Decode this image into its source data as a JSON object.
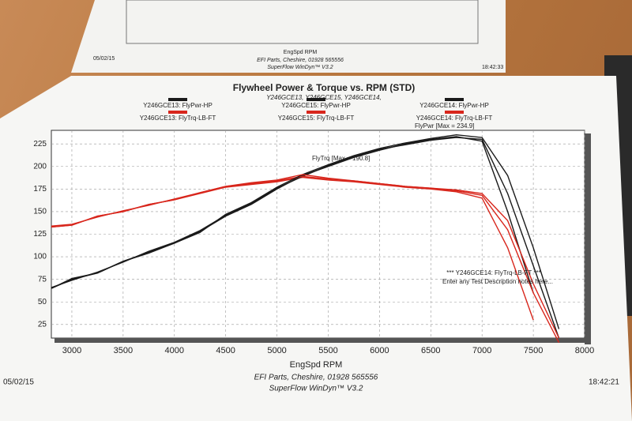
{
  "chart_data": {
    "type": "line",
    "title": "Flywheel Power & Torque vs. RPM (STD)",
    "subtitle": "Y246GCE13, Y246GCE15, Y246GCE14,",
    "x_label": "EngSpd RPM",
    "x": [
      2800,
      3000,
      3250,
      3500,
      3750,
      4000,
      4250,
      4500,
      4750,
      5000,
      5250,
      5500,
      5750,
      6000,
      6250,
      6500,
      6750,
      7000,
      7250,
      7500,
      7750
    ],
    "series": [
      {
        "name": "Y246GCE13: FlyPwr-HP",
        "color": "#1a1a1a",
        "values": [
          65,
          75,
          82,
          95,
          105,
          115,
          128,
          145,
          158,
          175,
          190,
          200,
          210,
          218,
          225,
          230,
          233,
          228,
          150,
          60,
          null
        ]
      },
      {
        "name": "Y246GCE13: FlyTrq-LB-FT",
        "color": "#d8261c",
        "values": [
          133,
          135,
          145,
          150,
          158,
          163,
          170,
          177,
          180,
          183,
          188,
          185,
          183,
          180,
          177,
          175,
          172,
          165,
          110,
          30,
          null
        ]
      },
      {
        "name": "Y246GCE15: FlyPwr-HP",
        "color": "#1a1a1a",
        "values": [
          66,
          74,
          83,
          94,
          106,
          116,
          129,
          146,
          159,
          176,
          189,
          201,
          211,
          219,
          224,
          229,
          232,
          230,
          170,
          90,
          10
        ]
      },
      {
        "name": "Y246GCE15: FlyTrq-LB-FT",
        "color": "#d8261c",
        "values": [
          134,
          136,
          144,
          151,
          157,
          164,
          171,
          178,
          181,
          184,
          189,
          186,
          184,
          181,
          178,
          176,
          173,
          168,
          130,
          60,
          5
        ]
      },
      {
        "name": "Y246GCE14: FlyPwr-HP",
        "color": "#1a1a1a",
        "values": [
          65,
          76,
          82,
          95,
          104,
          115,
          127,
          147,
          160,
          177,
          191,
          202,
          212,
          220,
          226,
          231,
          235,
          232,
          190,
          110,
          20
        ]
      },
      {
        "name": "Y246GCE14: FlyTrq-LB-FT",
        "color": "#d8261c",
        "values": [
          133,
          135,
          145,
          150,
          158,
          163,
          171,
          178,
          182,
          185,
          191,
          187,
          184,
          181,
          178,
          176,
          174,
          170,
          140,
          70,
          10
        ]
      }
    ],
    "xlim": [
      2800,
      8000
    ],
    "xticks": [
      3000,
      3500,
      4000,
      4500,
      5000,
      5500,
      6000,
      6500,
      7000,
      7500,
      8000
    ],
    "ylim": [
      10,
      240
    ],
    "yticks": [
      25,
      50,
      75,
      100,
      125,
      150,
      175,
      200,
      225
    ],
    "grid": true,
    "annotations": [
      "FlyPwr [Max = 234.9]",
      "FlyTrq [Max = 190.8]",
      "*** Y246GCE14: FlyTrq-LB-FT ***",
      "Enter any Test Description notes here..."
    ]
  },
  "footer": {
    "date": "05/02/15",
    "company": "EFI Parts, Cheshire, 01928 565556",
    "software": "SuperFlow WinDyn™ V3.2",
    "time": "18:42:21"
  },
  "background_sheet": {
    "date": "05/02/15",
    "x_label": "EngSpd RPM",
    "company": "EFI Parts, Cheshire, 01928 565556",
    "software": "SuperFlow WinDyn™ V3.2",
    "time": "18:42:33"
  }
}
